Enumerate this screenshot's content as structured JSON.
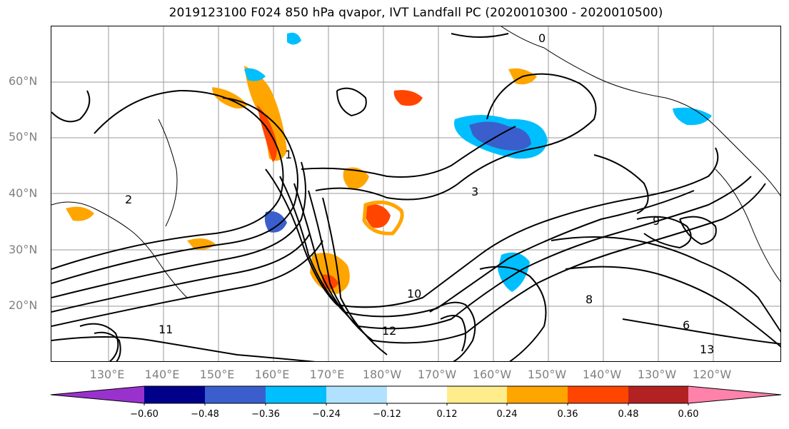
{
  "title": "2019123100 F024 850 hPa qvapor, IVT Landfall PC (2020010300 - 2020010500)",
  "lat_labels": [
    "60°N",
    "50°N",
    "40°N",
    "30°N",
    "20°N"
  ],
  "lon_labels": [
    "130°E",
    "140°E",
    "150°E",
    "160°E",
    "170°E",
    "180°W",
    "170°W",
    "160°W",
    "150°W",
    "140°W",
    "130°W",
    "120°W"
  ],
  "colorbar": {
    "colors": [
      "#9932cc",
      "#00008b",
      "#3a5fcd",
      "#00bfff",
      "#b0e2ff",
      "#ffffff",
      "#ffec8b",
      "#ffa500",
      "#ff4500",
      "#b22222",
      "#ff82ab"
    ],
    "ticks": [
      "−0.60",
      "−0.48",
      "−0.36",
      "−0.24",
      "−0.12",
      "0.12",
      "0.24",
      "0.36",
      "0.48",
      "0.60"
    ]
  },
  "contour_labels": [
    "0",
    "1",
    "2",
    "3",
    "6",
    "8",
    "9",
    "10",
    "11",
    "12",
    "13"
  ]
}
